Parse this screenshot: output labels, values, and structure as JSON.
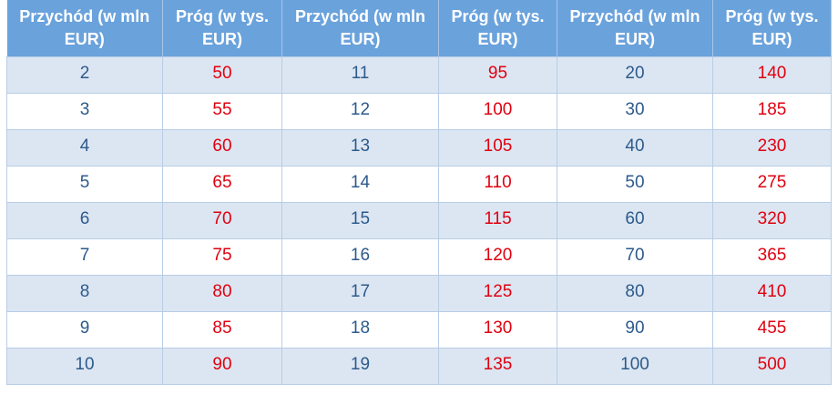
{
  "table": {
    "header": [
      "Przychód (w mln EUR)",
      "Próg (w tys. EUR)",
      "Przychód (w mln EUR)",
      "Próg (w tys. EUR)",
      "Przychód (w mln EUR)",
      "Próg (w tys. EUR)"
    ],
    "rows": [
      [
        2,
        50,
        11,
        95,
        20,
        140
      ],
      [
        3,
        55,
        12,
        100,
        30,
        185
      ],
      [
        4,
        60,
        13,
        105,
        40,
        230
      ],
      [
        5,
        65,
        14,
        110,
        50,
        275
      ],
      [
        6,
        70,
        15,
        115,
        60,
        320
      ],
      [
        7,
        75,
        16,
        120,
        70,
        365
      ],
      [
        8,
        80,
        17,
        125,
        80,
        410
      ],
      [
        9,
        85,
        18,
        130,
        90,
        455
      ],
      [
        10,
        90,
        19,
        135,
        100,
        500
      ]
    ]
  }
}
